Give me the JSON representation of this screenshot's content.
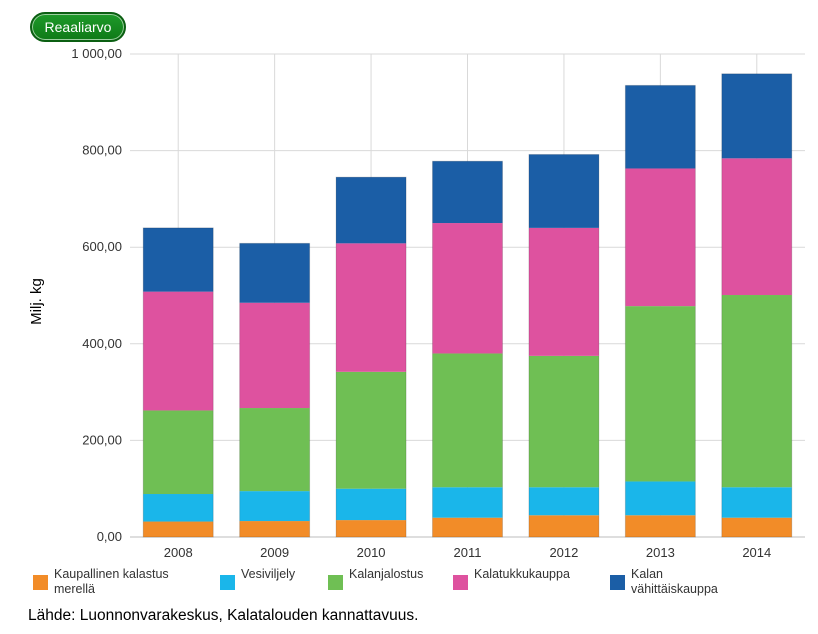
{
  "toggle": {
    "label": "Reaaliarvo"
  },
  "source": "Lähde: Luonnonvarakeskus, Kalatalouden kannattavuus.",
  "chart_data": {
    "type": "bar",
    "stacked": true,
    "title": "",
    "xlabel": "",
    "ylabel": "Milj. kg",
    "categories": [
      "2008",
      "2009",
      "2010",
      "2011",
      "2012",
      "2013",
      "2014"
    ],
    "ylim": [
      0,
      1000
    ],
    "yticks": [
      0,
      200,
      400,
      600,
      800,
      1000
    ],
    "ytick_labels": [
      "0,00",
      "200,00",
      "400,00",
      "600,00",
      "800,00",
      "1 000,00"
    ],
    "grid": true,
    "legend": "bottom",
    "series": [
      {
        "name": "Kaupallinen kalastus merellä",
        "color": "#f28c28",
        "values": [
          32,
          33,
          35,
          40,
          45,
          45,
          40
        ]
      },
      {
        "name": "Vesiviljely",
        "color": "#1ab6ea",
        "values": [
          57,
          62,
          65,
          63,
          58,
          70,
          63
        ]
      },
      {
        "name": "Kalanjalostus",
        "color": "#6fbf54",
        "values": [
          173,
          172,
          242,
          277,
          272,
          363,
          398
        ]
      },
      {
        "name": "Kalatukkukauppa",
        "color": "#de529f",
        "values": [
          246,
          218,
          266,
          270,
          265,
          285,
          283
        ]
      },
      {
        "name": "Kalan vähittäiskauppa",
        "color": "#1b5ea6",
        "values": [
          132,
          123,
          137,
          128,
          152,
          172,
          175
        ]
      }
    ]
  }
}
